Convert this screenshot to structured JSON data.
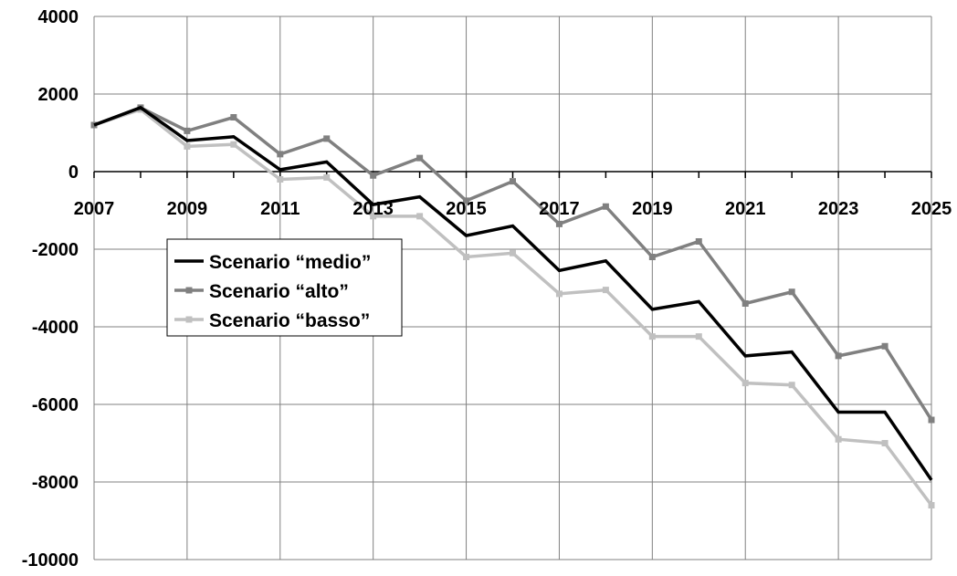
{
  "chart_data": {
    "type": "line",
    "title": "",
    "xlabel": "",
    "ylabel": "",
    "x": [
      2007,
      2008,
      2009,
      2010,
      2011,
      2012,
      2013,
      2014,
      2015,
      2016,
      2017,
      2018,
      2019,
      2020,
      2021,
      2022,
      2023,
      2024,
      2025
    ],
    "x_tick_labels": [
      "2007",
      "2009",
      "2011",
      "2013",
      "2015",
      "2017",
      "2019",
      "2021",
      "2023",
      "2025"
    ],
    "y_tick_labels": [
      "4000",
      "2000",
      "0",
      "-2000",
      "-4000",
      "-6000",
      "-8000",
      "-10000"
    ],
    "ylim": [
      -10000,
      4000
    ],
    "xlim": [
      2007,
      2025
    ],
    "grid": true,
    "legend_position": "middle-left",
    "series": [
      {
        "name": "Scenario “medio”",
        "color": "#000000",
        "markers": false,
        "values": [
          1200,
          1650,
          800,
          900,
          50,
          250,
          -850,
          -650,
          -1650,
          -1400,
          -2550,
          -2300,
          -3550,
          -3350,
          -4750,
          -4650,
          -6200,
          -6200,
          -7950
        ]
      },
      {
        "name": "Scenario “alto”",
        "color": "#808080",
        "markers": true,
        "values": [
          1200,
          1650,
          1050,
          1400,
          450,
          850,
          -100,
          350,
          -750,
          -250,
          -1350,
          -900,
          -2200,
          -1800,
          -3400,
          -3100,
          -4750,
          -4500,
          -6400
        ]
      },
      {
        "name": "Scenario “basso”",
        "color": "#c0c0c0",
        "markers": true,
        "values": [
          1200,
          1600,
          650,
          700,
          -200,
          -150,
          -1150,
          -1150,
          -2200,
          -2100,
          -3150,
          -3050,
          -4250,
          -4250,
          -5450,
          -5500,
          -6900,
          -7000,
          -8600
        ]
      }
    ]
  }
}
